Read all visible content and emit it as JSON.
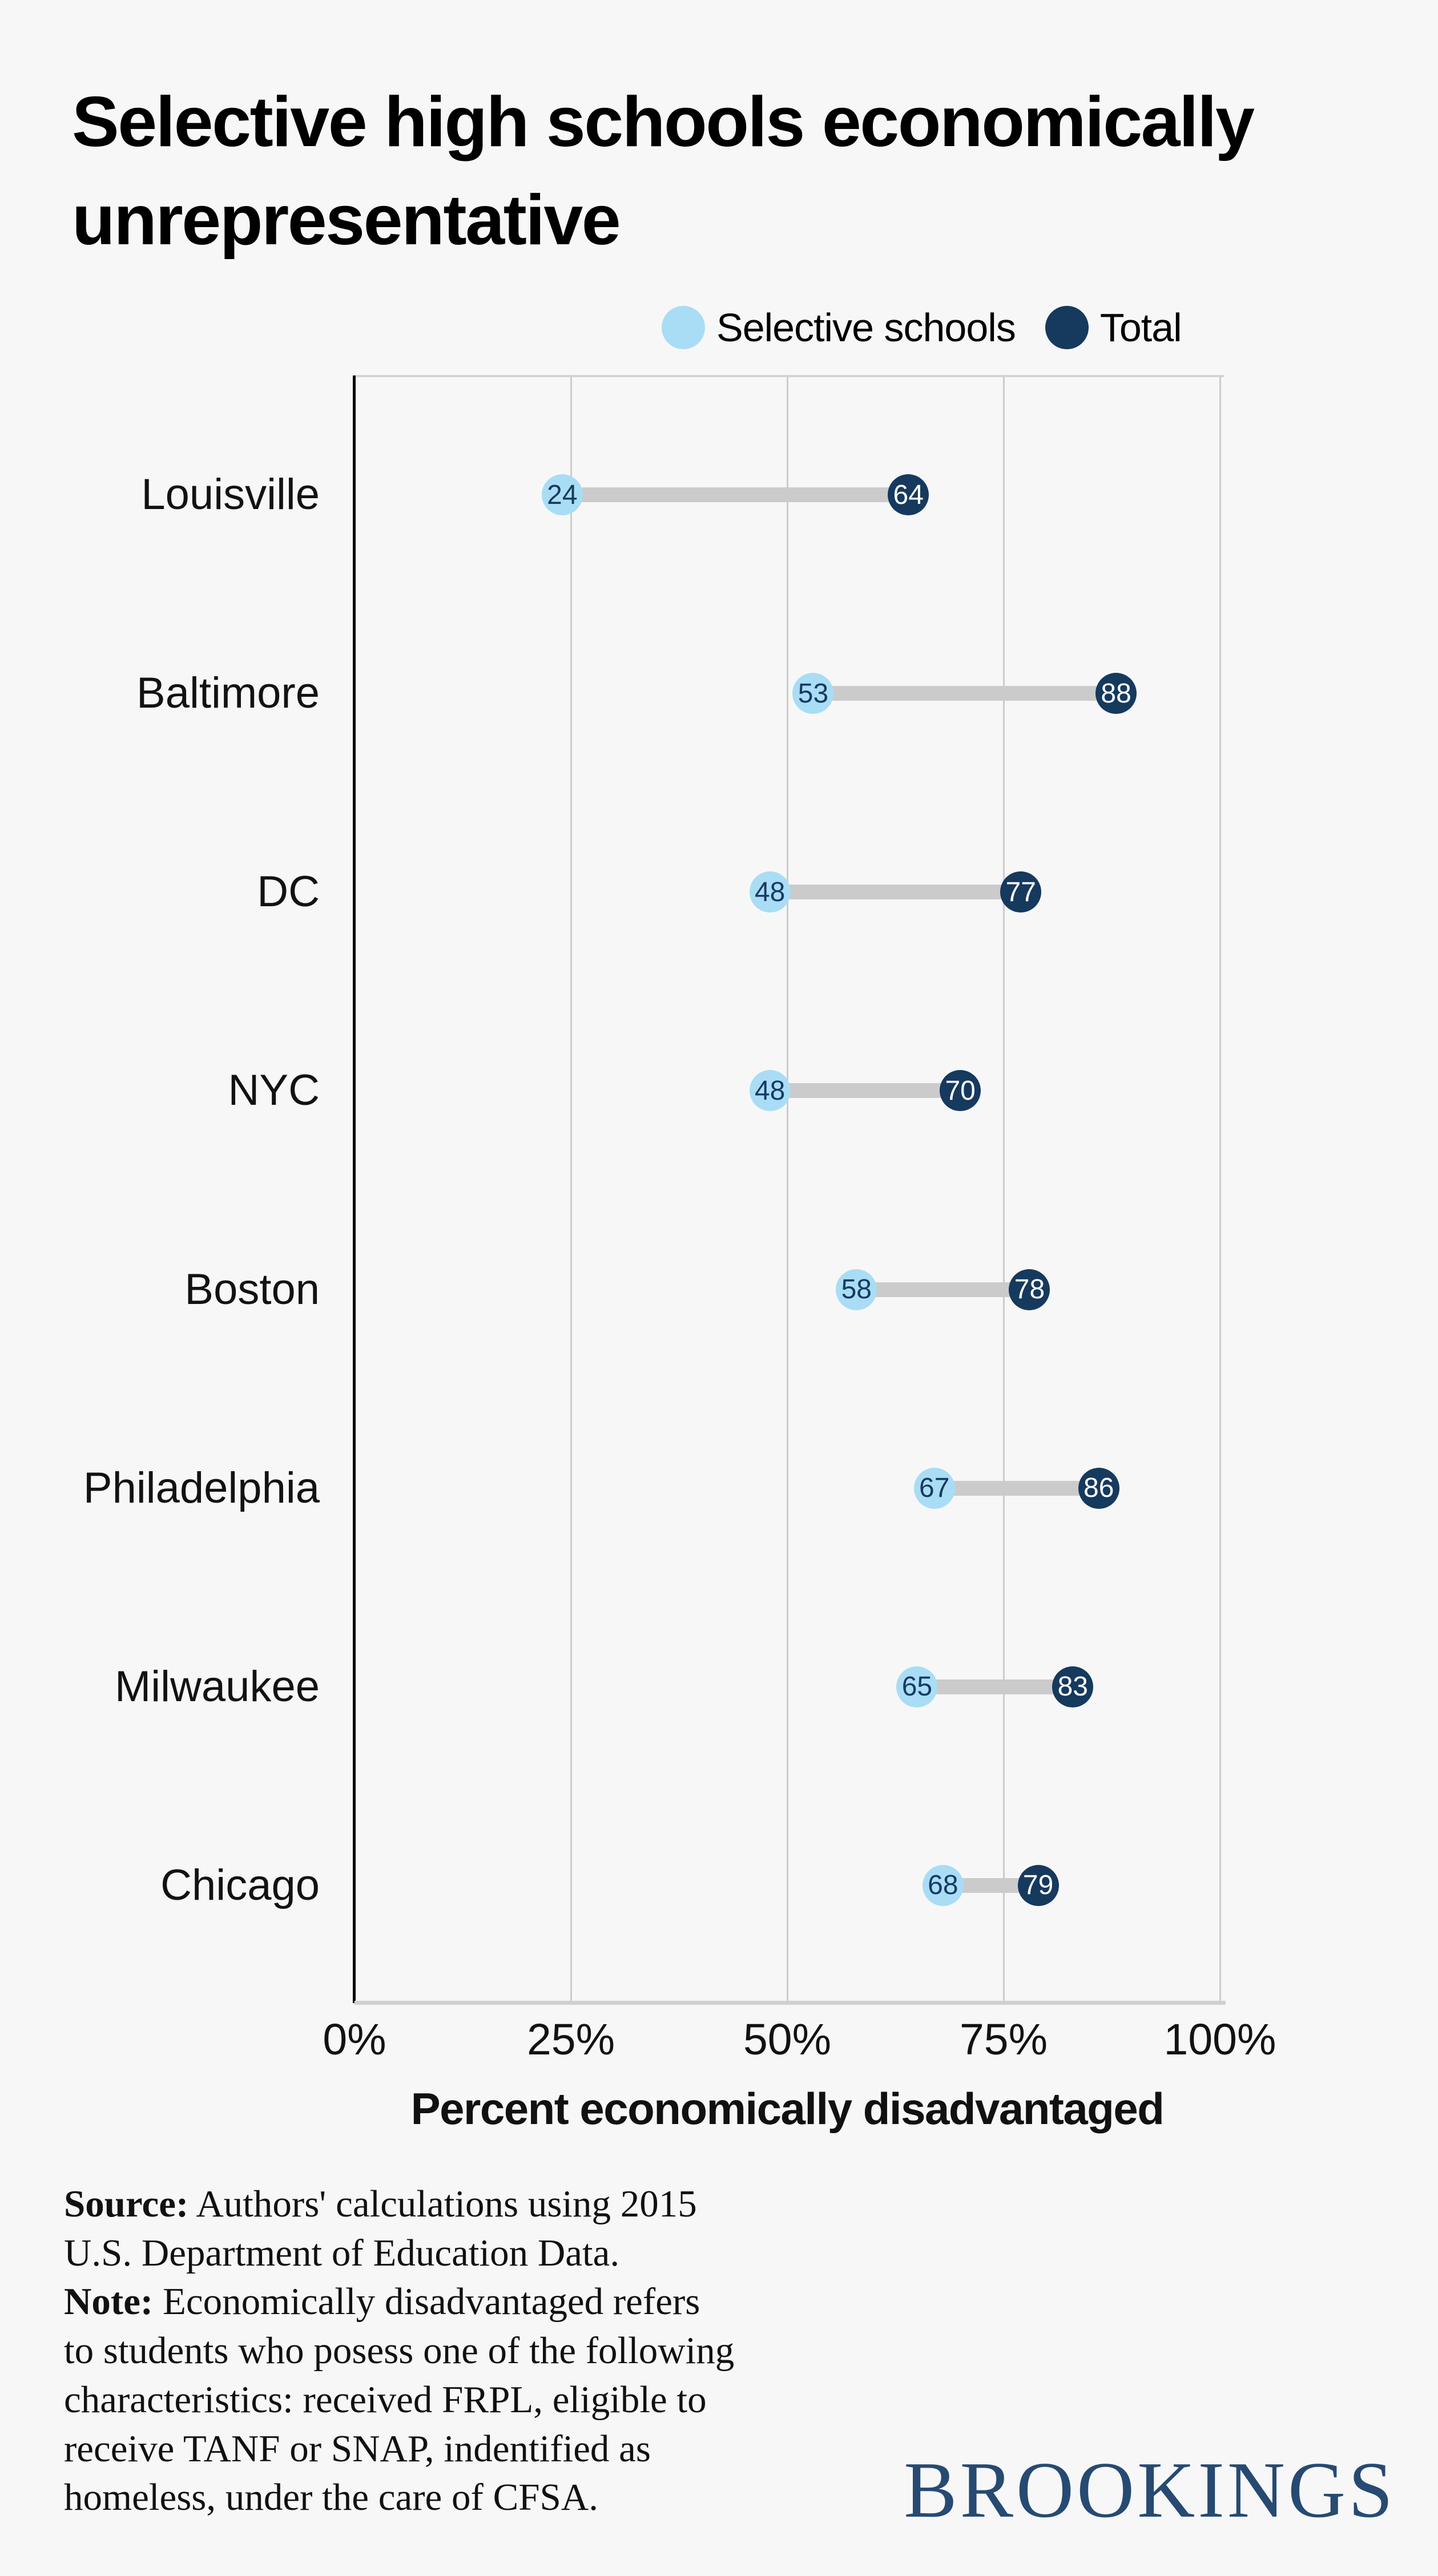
{
  "title": {
    "line1": "Selective high schools economically",
    "line2": "unrepresentative"
  },
  "legend": [
    {
      "label": "Selective schools",
      "color": "#a9ddf5"
    },
    {
      "label": "Total",
      "color": "#16395e"
    }
  ],
  "axis": {
    "ticks": [
      "0%",
      "25%",
      "50%",
      "75%",
      "100%"
    ],
    "tick_values": [
      0,
      25,
      50,
      75,
      100
    ],
    "title": "Percent economically disadvantaged"
  },
  "chart_data": {
    "type": "dumbbell",
    "title": "Selective high schools economically unrepresentative",
    "categories": [
      "Louisville",
      "Baltimore",
      "DC",
      "NYC",
      "Boston",
      "Philadelphia",
      "Milwaukee",
      "Chicago"
    ],
    "series": [
      {
        "name": "Selective schools",
        "color": "#a9ddf5",
        "values": [
          24,
          53,
          48,
          48,
          58,
          67,
          65,
          68
        ]
      },
      {
        "name": "Total",
        "color": "#16395e",
        "values": [
          64,
          88,
          77,
          70,
          78,
          86,
          83,
          79
        ]
      }
    ],
    "xlabel": "Percent economically disadvantaged",
    "xlim": [
      0,
      100
    ],
    "grid": "vertical gridlines at 25, 50, 75, 100",
    "legend_position": "top-right above plot"
  },
  "colors": {
    "background": "#f7f7f7",
    "selective": "#a9ddf5",
    "total": "#16395e",
    "connector": "#cbcbcb",
    "gridline": "#cccccc",
    "y_axis": "#000000",
    "x_baseline": "#d0d0d0",
    "value_on_light": "#173a60",
    "value_on_dark": "#ffffff",
    "logo": "#264a72"
  },
  "notes": {
    "lines": [
      {
        "prefix": "Source:",
        "text": " Authors' calculations using 2015"
      },
      {
        "prefix": "",
        "text": "U.S. Department of Education Data."
      },
      {
        "prefix": "Note:",
        "text": " Economically disadvantaged refers"
      },
      {
        "prefix": "",
        "text": "to students who posess one of the following"
      },
      {
        "prefix": "",
        "text": "characteristics: received FRPL, eligible to"
      },
      {
        "prefix": "",
        "text": "receive TANF or SNAP, indentified as"
      },
      {
        "prefix": "",
        "text": "homeless, under the care of CFSA."
      }
    ]
  },
  "logo": {
    "text": "BROOKINGS"
  }
}
